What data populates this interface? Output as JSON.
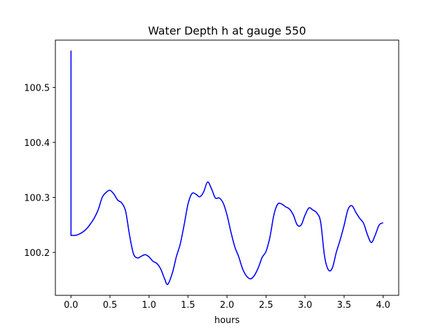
{
  "chart_data": {
    "type": "line",
    "title": "Water Depth h at gauge 550",
    "xlabel": "hours",
    "ylabel": "",
    "xlim": [
      -0.2,
      4.2
    ],
    "ylim": [
      100.122,
      100.586
    ],
    "xticks": [
      0.0,
      0.5,
      1.0,
      1.5,
      2.0,
      2.5,
      3.0,
      3.5,
      4.0
    ],
    "xtick_labels": [
      "0.0",
      "0.5",
      "1.0",
      "1.5",
      "2.0",
      "2.5",
      "3.0",
      "3.5",
      "4.0"
    ],
    "yticks": [
      100.2,
      100.3,
      100.4,
      100.5
    ],
    "ytick_labels": [
      "100.2",
      "100.3",
      "100.4",
      "100.5"
    ],
    "grid": false,
    "series": [
      {
        "color": "#0000ff",
        "points": [
          [
            0.0,
            100.567
          ],
          [
            0.0,
            100.231
          ],
          [
            0.05,
            100.231
          ],
          [
            0.1,
            100.233
          ],
          [
            0.15,
            100.237
          ],
          [
            0.2,
            100.243
          ],
          [
            0.25,
            100.252
          ],
          [
            0.3,
            100.263
          ],
          [
            0.35,
            100.278
          ],
          [
            0.4,
            100.3
          ],
          [
            0.45,
            100.309
          ],
          [
            0.5,
            100.313
          ],
          [
            0.55,
            100.306
          ],
          [
            0.6,
            100.295
          ],
          [
            0.65,
            100.29
          ],
          [
            0.7,
            100.275
          ],
          [
            0.75,
            100.232
          ],
          [
            0.8,
            100.198
          ],
          [
            0.85,
            100.19
          ],
          [
            0.9,
            100.193
          ],
          [
            0.95,
            100.196
          ],
          [
            1.0,
            100.192
          ],
          [
            1.05,
            100.184
          ],
          [
            1.1,
            100.18
          ],
          [
            1.15,
            100.17
          ],
          [
            1.2,
            100.152
          ],
          [
            1.24,
            100.142
          ],
          [
            1.3,
            100.163
          ],
          [
            1.35,
            100.192
          ],
          [
            1.4,
            100.215
          ],
          [
            1.45,
            100.25
          ],
          [
            1.5,
            100.288
          ],
          [
            1.55,
            100.307
          ],
          [
            1.6,
            100.306
          ],
          [
            1.65,
            100.301
          ],
          [
            1.7,
            100.31
          ],
          [
            1.75,
            100.328
          ],
          [
            1.8,
            100.316
          ],
          [
            1.85,
            100.299
          ],
          [
            1.9,
            100.299
          ],
          [
            1.95,
            100.29
          ],
          [
            2.0,
            100.268
          ],
          [
            2.05,
            100.237
          ],
          [
            2.1,
            100.21
          ],
          [
            2.15,
            100.192
          ],
          [
            2.2,
            100.17
          ],
          [
            2.25,
            100.157
          ],
          [
            2.3,
            100.152
          ],
          [
            2.35,
            100.158
          ],
          [
            2.4,
            100.172
          ],
          [
            2.45,
            100.191
          ],
          [
            2.5,
            100.202
          ],
          [
            2.55,
            100.228
          ],
          [
            2.6,
            100.268
          ],
          [
            2.65,
            100.288
          ],
          [
            2.7,
            100.288
          ],
          [
            2.75,
            100.283
          ],
          [
            2.8,
            100.279
          ],
          [
            2.85,
            100.268
          ],
          [
            2.9,
            100.25
          ],
          [
            2.95,
            100.25
          ],
          [
            3.0,
            100.268
          ],
          [
            3.05,
            100.281
          ],
          [
            3.1,
            100.277
          ],
          [
            3.15,
            100.272
          ],
          [
            3.2,
            100.255
          ],
          [
            3.25,
            100.193
          ],
          [
            3.3,
            100.168
          ],
          [
            3.35,
            100.172
          ],
          [
            3.4,
            100.2
          ],
          [
            3.45,
            100.223
          ],
          [
            3.5,
            100.249
          ],
          [
            3.55,
            100.278
          ],
          [
            3.6,
            100.285
          ],
          [
            3.65,
            100.273
          ],
          [
            3.7,
            100.262
          ],
          [
            3.75,
            100.253
          ],
          [
            3.8,
            100.232
          ],
          [
            3.85,
            100.218
          ],
          [
            3.9,
            100.232
          ],
          [
            3.95,
            100.25
          ],
          [
            4.0,
            100.254
          ]
        ]
      }
    ]
  }
}
